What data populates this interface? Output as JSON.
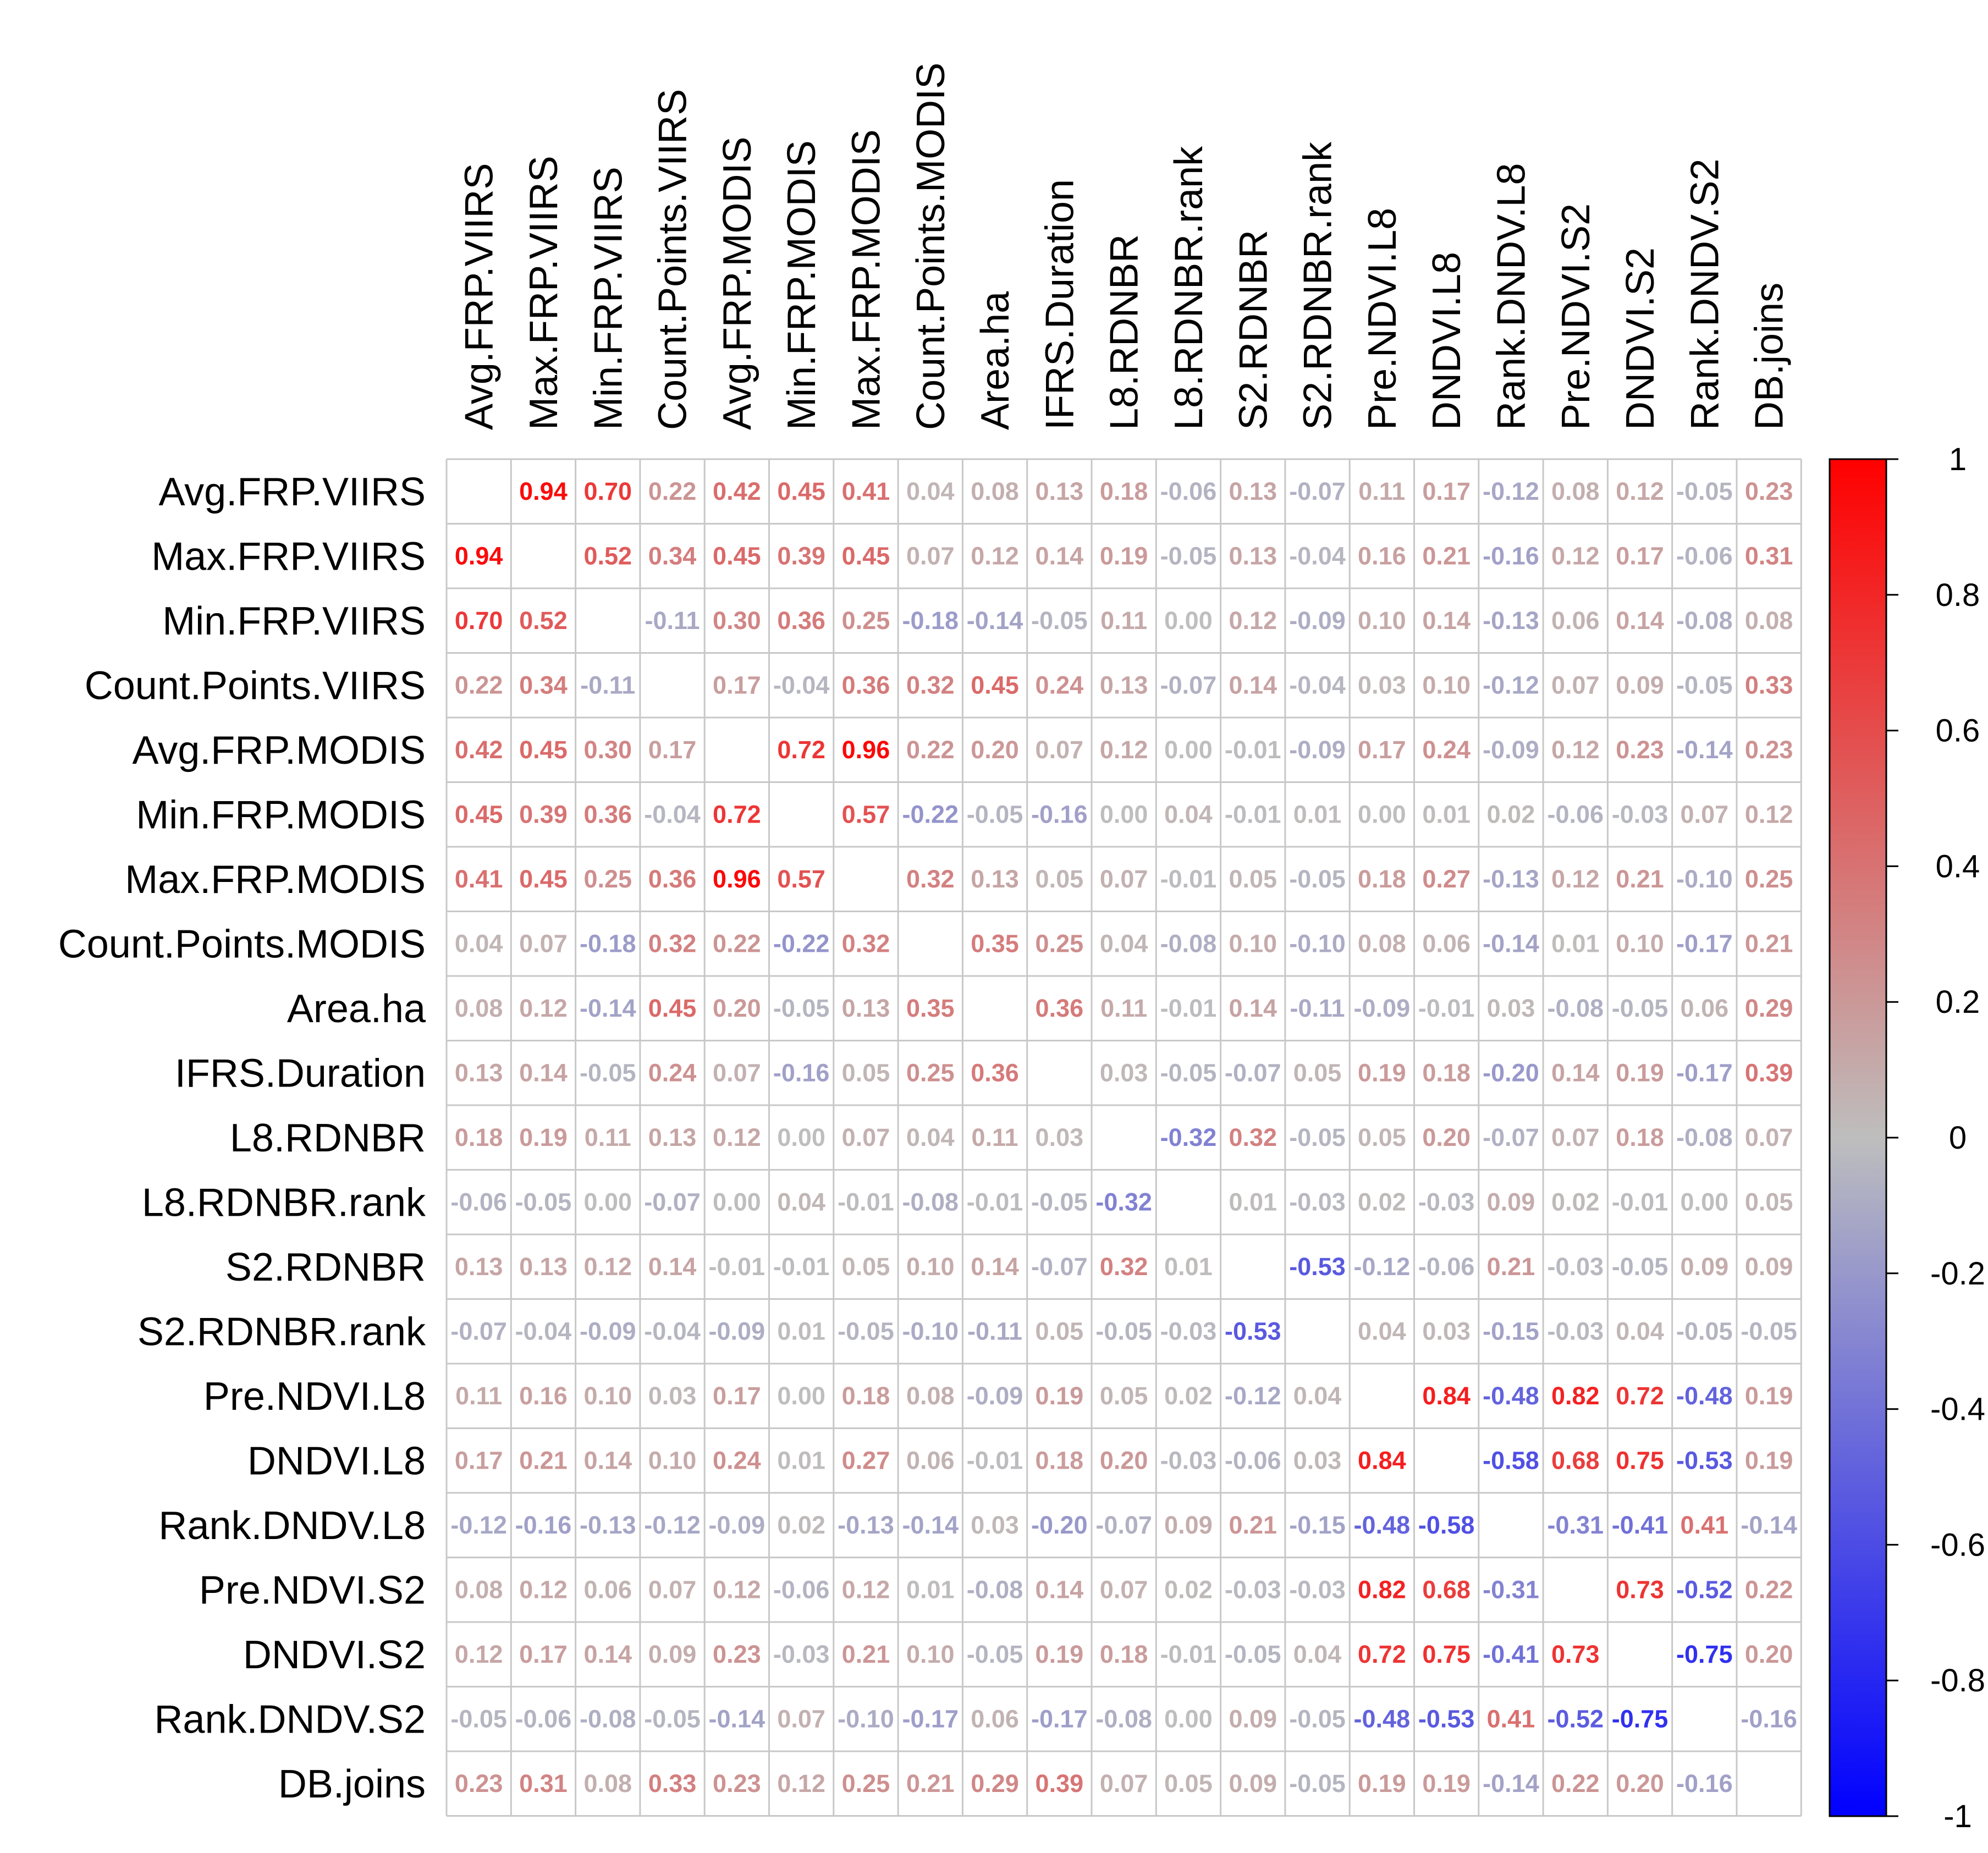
{
  "chart_data": {
    "type": "heatmap",
    "title": "",
    "variables": [
      "Avg.FRP.VIIRS",
      "Max.FRP.VIIRS",
      "Min.FRP.VIIRS",
      "Count.Points.VIIRS",
      "Avg.FRP.MODIS",
      "Min.FRP.MODIS",
      "Max.FRP.MODIS",
      "Count.Points.MODIS",
      "Area.ha",
      "IFRS.Duration",
      "L8.RDNBR",
      "L8.RDNBR.rank",
      "S2.RDNBR",
      "S2.RDNBR.rank",
      "Pre.NDVI.L8",
      "DNDVI.L8",
      "Rank.DNDV.L8",
      "Pre.NDVI.S2",
      "DNDVI.S2",
      "Rank.DNDV.S2",
      "DB.joins"
    ],
    "matrix": [
      [
        null,
        "0.94",
        "0.70",
        "0.22",
        "0.42",
        "0.45",
        "0.41",
        "0.04",
        "0.08",
        "0.13",
        "0.18",
        "-0.06",
        "0.13",
        "-0.07",
        "0.11",
        "0.17",
        "-0.12",
        "0.08",
        "0.12",
        "-0.05",
        "0.23"
      ],
      [
        "0.94",
        null,
        "0.52",
        "0.34",
        "0.45",
        "0.39",
        "0.45",
        "0.07",
        "0.12",
        "0.14",
        "0.19",
        "-0.05",
        "0.13",
        "-0.04",
        "0.16",
        "0.21",
        "-0.16",
        "0.12",
        "0.17",
        "-0.06",
        "0.31"
      ],
      [
        "0.70",
        "0.52",
        null,
        "-0.11",
        "0.30",
        "0.36",
        "0.25",
        "-0.18",
        "-0.14",
        "-0.05",
        "0.11",
        "0.00",
        "0.12",
        "-0.09",
        "0.10",
        "0.14",
        "-0.13",
        "0.06",
        "0.14",
        "-0.08",
        "0.08"
      ],
      [
        "0.22",
        "0.34",
        "-0.11",
        null,
        "0.17",
        "-0.04",
        "0.36",
        "0.32",
        "0.45",
        "0.24",
        "0.13",
        "-0.07",
        "0.14",
        "-0.04",
        "0.03",
        "0.10",
        "-0.12",
        "0.07",
        "0.09",
        "-0.05",
        "0.33"
      ],
      [
        "0.42",
        "0.45",
        "0.30",
        "0.17",
        null,
        "0.72",
        "0.96",
        "0.22",
        "0.20",
        "0.07",
        "0.12",
        "0.00",
        "-0.01",
        "-0.09",
        "0.17",
        "0.24",
        "-0.09",
        "0.12",
        "0.23",
        "-0.14",
        "0.23"
      ],
      [
        "0.45",
        "0.39",
        "0.36",
        "-0.04",
        "0.72",
        null,
        "0.57",
        "-0.22",
        "-0.05",
        "-0.16",
        "0.00",
        "0.04",
        "-0.01",
        "0.01",
        "0.00",
        "0.01",
        "0.02",
        "-0.06",
        "-0.03",
        "0.07",
        "0.12"
      ],
      [
        "0.41",
        "0.45",
        "0.25",
        "0.36",
        "0.96",
        "0.57",
        null,
        "0.32",
        "0.13",
        "0.05",
        "0.07",
        "-0.01",
        "0.05",
        "-0.05",
        "0.18",
        "0.27",
        "-0.13",
        "0.12",
        "0.21",
        "-0.10",
        "0.25"
      ],
      [
        "0.04",
        "0.07",
        "-0.18",
        "0.32",
        "0.22",
        "-0.22",
        "0.32",
        null,
        "0.35",
        "0.25",
        "0.04",
        "-0.08",
        "0.10",
        "-0.10",
        "0.08",
        "0.06",
        "-0.14",
        "0.01",
        "0.10",
        "-0.17",
        "0.21"
      ],
      [
        "0.08",
        "0.12",
        "-0.14",
        "0.45",
        "0.20",
        "-0.05",
        "0.13",
        "0.35",
        null,
        "0.36",
        "0.11",
        "-0.01",
        "0.14",
        "-0.11",
        "-0.09",
        "-0.01",
        "0.03",
        "-0.08",
        "-0.05",
        "0.06",
        "0.29"
      ],
      [
        "0.13",
        "0.14",
        "-0.05",
        "0.24",
        "0.07",
        "-0.16",
        "0.05",
        "0.25",
        "0.36",
        null,
        "0.03",
        "-0.05",
        "-0.07",
        "0.05",
        "0.19",
        "0.18",
        "-0.20",
        "0.14",
        "0.19",
        "-0.17",
        "0.39"
      ],
      [
        "0.18",
        "0.19",
        "0.11",
        "0.13",
        "0.12",
        "0.00",
        "0.07",
        "0.04",
        "0.11",
        "0.03",
        null,
        "-0.32",
        "0.32",
        "-0.05",
        "0.05",
        "0.20",
        "-0.07",
        "0.07",
        "0.18",
        "-0.08",
        "0.07"
      ],
      [
        "-0.06",
        "-0.05",
        "0.00",
        "-0.07",
        "0.00",
        "0.04",
        "-0.01",
        "-0.08",
        "-0.01",
        "-0.05",
        "-0.32",
        null,
        "0.01",
        "-0.03",
        "0.02",
        "-0.03",
        "0.09",
        "0.02",
        "-0.01",
        "0.00",
        "0.05"
      ],
      [
        "0.13",
        "0.13",
        "0.12",
        "0.14",
        "-0.01",
        "-0.01",
        "0.05",
        "0.10",
        "0.14",
        "-0.07",
        "0.32",
        "0.01",
        null,
        "-0.53",
        "-0.12",
        "-0.06",
        "0.21",
        "-0.03",
        "-0.05",
        "0.09",
        "0.09"
      ],
      [
        "-0.07",
        "-0.04",
        "-0.09",
        "-0.04",
        "-0.09",
        "0.01",
        "-0.05",
        "-0.10",
        "-0.11",
        "0.05",
        "-0.05",
        "-0.03",
        "-0.53",
        null,
        "0.04",
        "0.03",
        "-0.15",
        "-0.03",
        "0.04",
        "-0.05",
        "-0.05"
      ],
      [
        "0.11",
        "0.16",
        "0.10",
        "0.03",
        "0.17",
        "0.00",
        "0.18",
        "0.08",
        "-0.09",
        "0.19",
        "0.05",
        "0.02",
        "-0.12",
        "0.04",
        null,
        "0.84",
        "-0.48",
        "0.82",
        "0.72",
        "-0.48",
        "0.19"
      ],
      [
        "0.17",
        "0.21",
        "0.14",
        "0.10",
        "0.24",
        "0.01",
        "0.27",
        "0.06",
        "-0.01",
        "0.18",
        "0.20",
        "-0.03",
        "-0.06",
        "0.03",
        "0.84",
        null,
        "-0.58",
        "0.68",
        "0.75",
        "-0.53",
        "0.19"
      ],
      [
        "-0.12",
        "-0.16",
        "-0.13",
        "-0.12",
        "-0.09",
        "0.02",
        "-0.13",
        "-0.14",
        "0.03",
        "-0.20",
        "-0.07",
        "0.09",
        "0.21",
        "-0.15",
        "-0.48",
        "-0.58",
        null,
        "-0.31",
        "-0.41",
        "0.41",
        "-0.14"
      ],
      [
        "0.08",
        "0.12",
        "0.06",
        "0.07",
        "0.12",
        "-0.06",
        "0.12",
        "0.01",
        "-0.08",
        "0.14",
        "0.07",
        "0.02",
        "-0.03",
        "-0.03",
        "0.82",
        "0.68",
        "-0.31",
        null,
        "0.73",
        "-0.52",
        "0.22"
      ],
      [
        "0.12",
        "0.17",
        "0.14",
        "0.09",
        "0.23",
        "-0.03",
        "0.21",
        "0.10",
        "-0.05",
        "0.19",
        "0.18",
        "-0.01",
        "-0.05",
        "0.04",
        "0.72",
        "0.75",
        "-0.41",
        "0.73",
        null,
        "-0.75",
        "0.20"
      ],
      [
        "-0.05",
        "-0.06",
        "-0.08",
        "-0.05",
        "-0.14",
        "0.07",
        "-0.10",
        "-0.17",
        "0.06",
        "-0.17",
        "-0.08",
        "0.00",
        "0.09",
        "-0.05",
        "-0.48",
        "-0.53",
        "0.41",
        "-0.52",
        "-0.75",
        null,
        "-0.16"
      ],
      [
        "0.23",
        "0.31",
        "0.08",
        "0.33",
        "0.23",
        "0.12",
        "0.25",
        "0.21",
        "0.29",
        "0.39",
        "0.07",
        "0.05",
        "0.09",
        "-0.05",
        "0.19",
        "0.19",
        "-0.14",
        "0.22",
        "0.20",
        "-0.16",
        null
      ]
    ],
    "colorscale": {
      "range": [
        -1,
        1
      ],
      "ticks": [
        "1",
        "0.8",
        "0.6",
        "0.4",
        "0.2",
        "0",
        "-0.2",
        "-0.4",
        "-0.6",
        "-0.8",
        "-1"
      ],
      "colors": {
        "negative": "#0000ff",
        "neutral": "#bebebe",
        "positive": "#ff0000"
      }
    },
    "grid": true,
    "legend": "right"
  }
}
